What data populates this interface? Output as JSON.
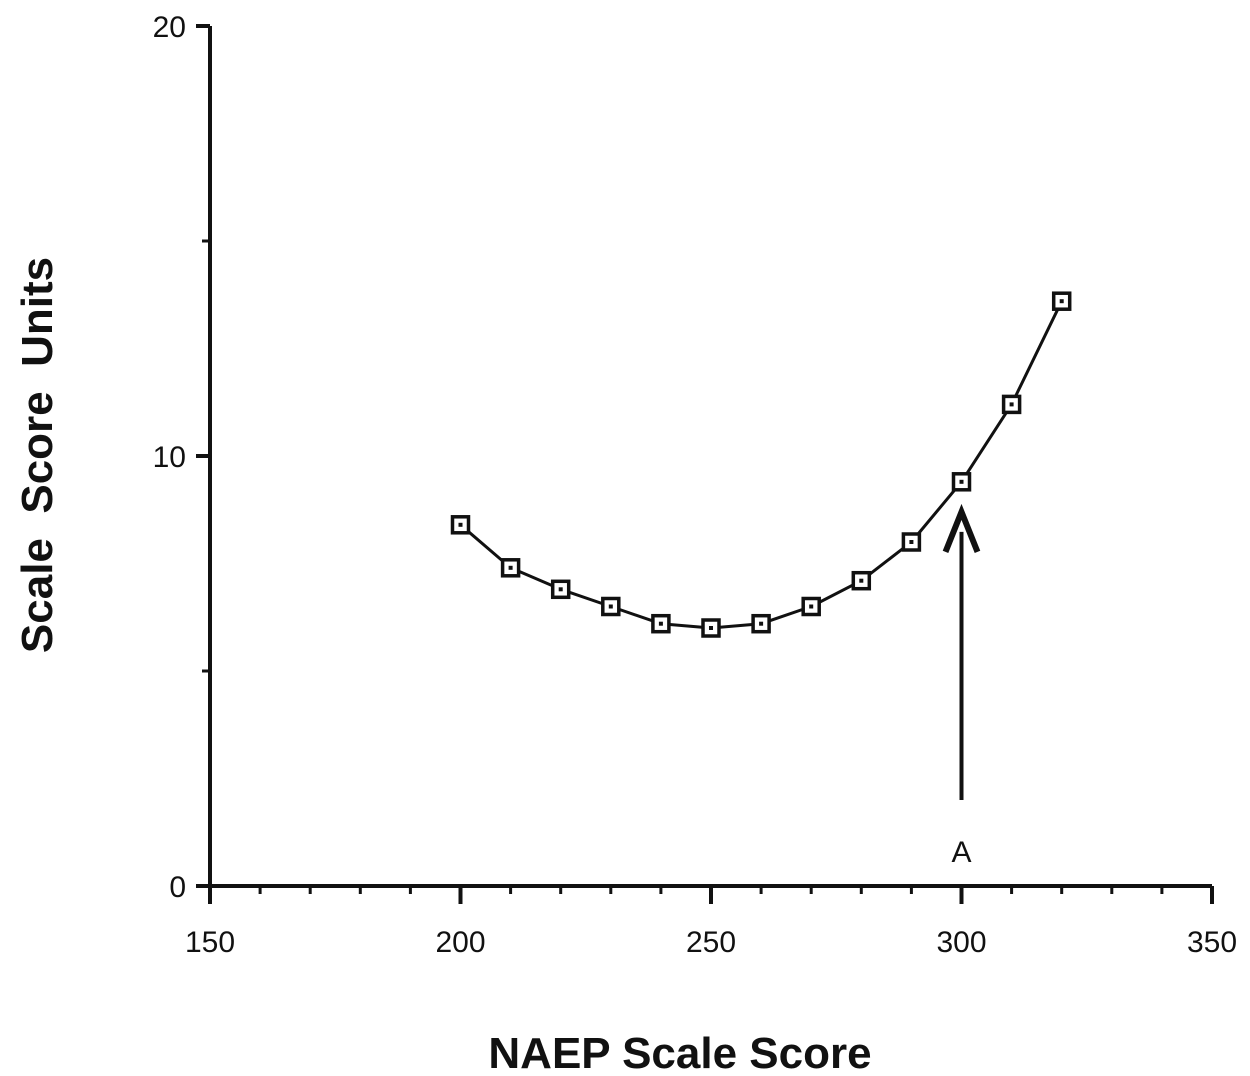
{
  "chart_data": {
    "type": "line",
    "title": "",
    "xlabel": "NAEP Scale Score",
    "ylabel": "Scale  Score  Units",
    "xlim": [
      150,
      350
    ],
    "ylim": [
      0,
      20
    ],
    "x_ticks": [
      150,
      200,
      250,
      300,
      350
    ],
    "y_ticks": [
      0,
      10,
      20
    ],
    "grid": false,
    "legend": null,
    "series": [
      {
        "marker": "square-dot",
        "x": [
          200,
          210,
          220,
          230,
          240,
          250,
          260,
          270,
          280,
          290,
          300,
          310,
          320
        ],
        "y": [
          8.4,
          7.4,
          6.9,
          6.5,
          6.1,
          6.0,
          6.1,
          6.5,
          7.1,
          8.0,
          9.4,
          11.2,
          13.6
        ]
      }
    ],
    "annotations": [
      {
        "label": "A",
        "type": "arrow",
        "x": 300,
        "y_from": 2.0,
        "y_to": 8.7
      }
    ]
  },
  "colors": {
    "ink": "#111111",
    "background": "#ffffff"
  }
}
